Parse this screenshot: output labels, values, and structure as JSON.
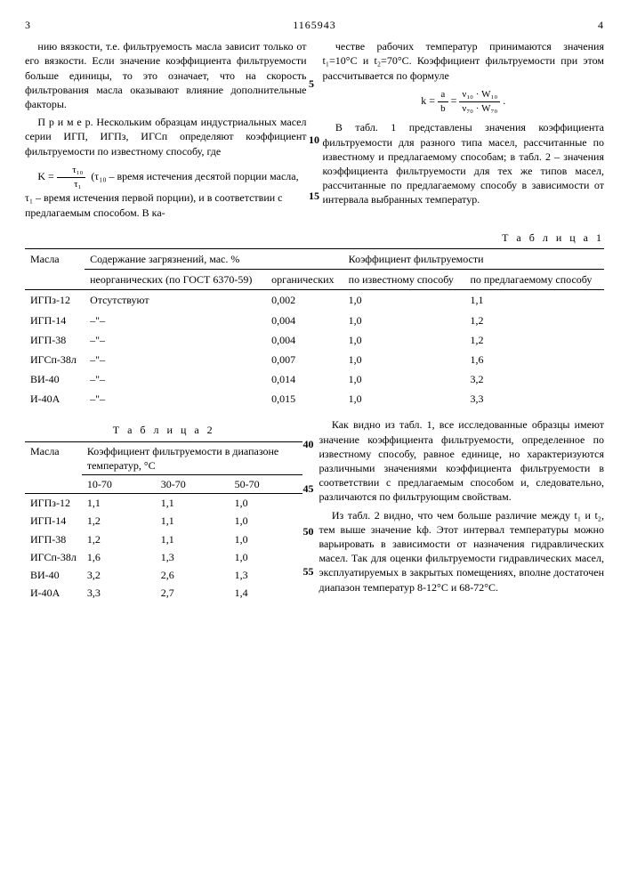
{
  "header": {
    "page_left": "3",
    "doc_number": "1165943",
    "page_right": "4"
  },
  "left_col": {
    "p1": "нию вязкости, т.е. фильтруемость масла зависит только от его вязкости. Если значение коэффициента фильтруемости больше единицы, то это означает, что на скорость фильтрования масла оказывают влияние дополнительные факторы.",
    "p2a": "П р и м е р.  Нескольким образцам индустриальных масел серии ИГП, ИГПз, ИГСп определяют коэффициент фильтруемости по известному способу, где",
    "formula_k": "K =",
    "tau10": "τ₁₀",
    "tau1": "τ₁",
    "p2b": "(τ₁₀ – время истечения десятой порции масла, τ₁ – время истечения первой порции), и в соответствии с предлагаемым способом. В ка-"
  },
  "right_col": {
    "p1": "честве рабочих температур принимаются значения t₁=10°С и t₂=70°С. Коэффициент фильтруемости при этом рассчитывается по формуле",
    "formula": "k = ",
    "f_ab_a": "a",
    "f_ab_b": "b",
    "f_eq": " = ",
    "f_num": "ν₁₀ · W₁₀",
    "f_den": "ν₇₀ · W₇₀",
    "p2": "В табл. 1 представлены значения коэффициента фильтруемости для разного типа масел, рассчитанные по известному и предлагаемому способам; в табл. 2 – значения коэффициента фильтруемости для тех же типов масел, рассчитанные по предлагаемому способу в зависимости от интервала выбранных температур."
  },
  "table1": {
    "title": "Т а б л и ц а   1",
    "head": {
      "c1": "Масла",
      "c2": "Содержание загрязнений, мас. %",
      "c3": "Коэффициент фильтруемости",
      "c2a": "неорганических (по ГОСТ 6370-59)",
      "c2b": "органических",
      "c3a": "по известному способу",
      "c3b": "по предлагаемому способу"
    },
    "rows": [
      {
        "m": "ИГПз-12",
        "a": "Отсутствуют",
        "b": "0,002",
        "c": "1,0",
        "d": "1,1"
      },
      {
        "m": "ИГП-14",
        "a": "–\"–",
        "b": "0,004",
        "c": "1,0",
        "d": "1,2"
      },
      {
        "m": "ИГП-38",
        "a": "–\"–",
        "b": "0,004",
        "c": "1,0",
        "d": "1,2"
      },
      {
        "m": "ИГСп-38л",
        "a": "–\"–",
        "b": "0,007",
        "c": "1,0",
        "d": "1,6"
      },
      {
        "m": "ВИ-40",
        "a": "–\"–",
        "b": "0,014",
        "c": "1,0",
        "d": "3,2"
      },
      {
        "m": "И-40А",
        "a": "–\"–",
        "b": "0,015",
        "c": "1,0",
        "d": "3,3"
      }
    ]
  },
  "table2": {
    "title": "Т а б л и ц а   2",
    "head": {
      "c1": "Масла",
      "c2": "Коэффициент фильтруемости в диапазоне температур, °С",
      "h1": "10-70",
      "h2": "30-70",
      "h3": "50-70"
    },
    "rows": [
      {
        "m": "ИГПз-12",
        "a": "1,1",
        "b": "1,1",
        "c": "1,0"
      },
      {
        "m": "ИГП-14",
        "a": "1,2",
        "b": "1,1",
        "c": "1,0"
      },
      {
        "m": "ИГП-38",
        "a": "1,2",
        "b": "1,1",
        "c": "1,0"
      },
      {
        "m": "ИГСп-38л",
        "a": "1,6",
        "b": "1,3",
        "c": "1,0"
      },
      {
        "m": "ВИ-40",
        "a": "3,2",
        "b": "2,6",
        "c": "1,3"
      },
      {
        "m": "И-40А",
        "a": "3,3",
        "b": "2,7",
        "c": "1,4"
      }
    ]
  },
  "lower_right": {
    "p1": "Как видно из табл. 1, все исследованные образцы имеют значение коэффициента фильтруемости, определенное по известному способу, равное единице, но характеризуются различными значениями коэффициента фильтруемости в соответствии с предлагаемым способом и, следовательно, различаются по фильтрующим свойствам.",
    "p2": "Из табл. 2 видно, что чем больше различие между t₁ и t₂, тем выше значение kф. Этот интервал температуры можно варьировать в зависимости от назначения гидравлических масел. Так для оценки фильтруемости гидравлических масел, эксплуатируемых в закрытых помещениях, вполне достаточен диапазон температур 8-12°С и 68-72°С."
  },
  "line_numbers": {
    "n5": "5",
    "n10": "10",
    "n15": "15",
    "n40": "40",
    "n45": "45",
    "n50": "50",
    "n55": "55"
  }
}
